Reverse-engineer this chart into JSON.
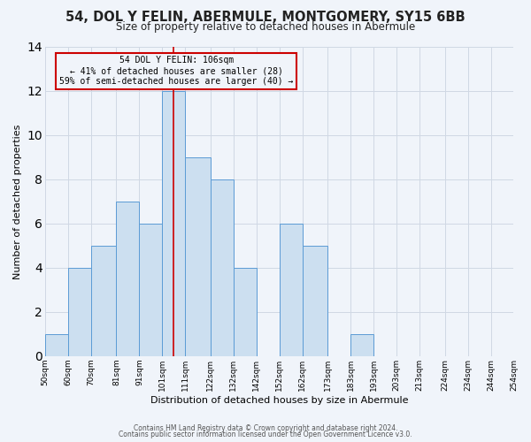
{
  "title": "54, DOL Y FELIN, ABERMULE, MONTGOMERY, SY15 6BB",
  "subtitle": "Size of property relative to detached houses in Abermule",
  "xlabel": "Distribution of detached houses by size in Abermule",
  "ylabel": "Number of detached properties",
  "bins": [
    50,
    60,
    70,
    81,
    91,
    101,
    111,
    122,
    132,
    142,
    152,
    162,
    173,
    183,
    193,
    203,
    213,
    224,
    234,
    244,
    254
  ],
  "counts": [
    1,
    4,
    5,
    7,
    6,
    12,
    9,
    8,
    4,
    0,
    6,
    5,
    0,
    1,
    0,
    0,
    0,
    0,
    0,
    0
  ],
  "bar_facecolor": "#ccdff0",
  "bar_edgecolor": "#5b9bd5",
  "grid_color": "#d0d8e4",
  "annotation_box_edgecolor": "#cc0000",
  "vline_color": "#cc0000",
  "vline_x": 106,
  "annotation_title": "54 DOL Y FELIN: 106sqm",
  "annotation_line1": "← 41% of detached houses are smaller (28)",
  "annotation_line2": "59% of semi-detached houses are larger (40) →",
  "tick_labels": [
    "50sqm",
    "60sqm",
    "70sqm",
    "81sqm",
    "91sqm",
    "101sqm",
    "111sqm",
    "122sqm",
    "132sqm",
    "142sqm",
    "152sqm",
    "162sqm",
    "173sqm",
    "183sqm",
    "193sqm",
    "203sqm",
    "213sqm",
    "224sqm",
    "234sqm",
    "244sqm",
    "254sqm"
  ],
  "ylim": [
    0,
    14
  ],
  "yticks": [
    0,
    2,
    4,
    6,
    8,
    10,
    12,
    14
  ],
  "footer_line1": "Contains HM Land Registry data © Crown copyright and database right 2024.",
  "footer_line2": "Contains public sector information licensed under the Open Government Licence v3.0.",
  "background_color": "#f0f4fa",
  "title_fontsize": 10.5,
  "subtitle_fontsize": 8.5,
  "ylabel_fontsize": 8,
  "xlabel_fontsize": 8,
  "tick_fontsize": 6.5,
  "footer_fontsize": 5.5
}
